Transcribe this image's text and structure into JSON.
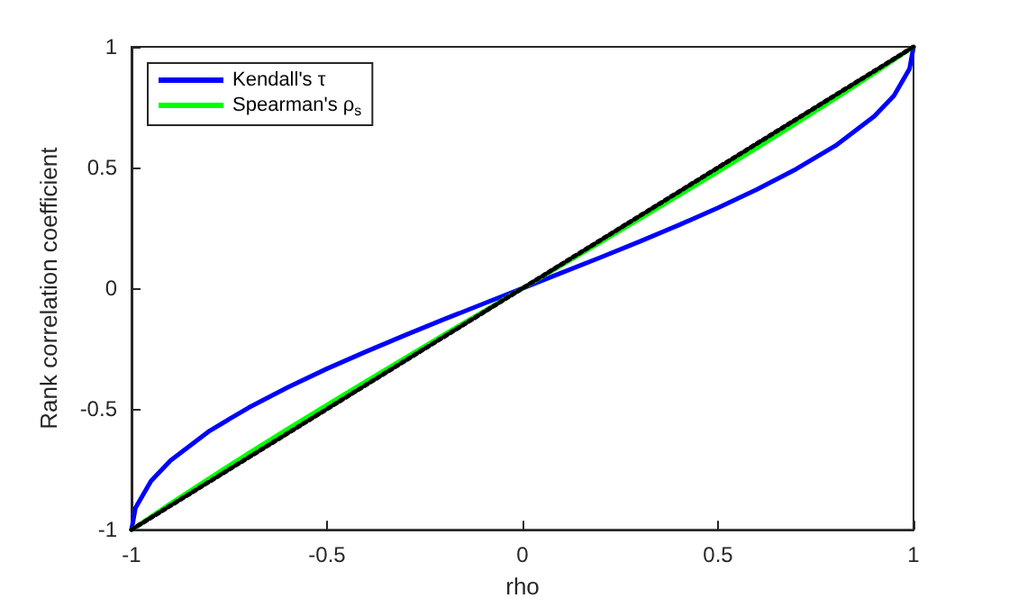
{
  "chart_data": {
    "type": "line",
    "xlabel": "rho",
    "ylabel": "Rank correlation coefficient",
    "xlim": [
      -1,
      1
    ],
    "ylim": [
      -1,
      1
    ],
    "xticks": [
      -1,
      -0.5,
      0,
      0.5,
      1
    ],
    "yticks": [
      -1,
      -0.5,
      0,
      0.5,
      1
    ],
    "grid": false,
    "legend": "top left",
    "marker": "none",
    "x": [
      -1,
      -0.99,
      -0.95,
      -0.9,
      -0.8,
      -0.7,
      -0.6,
      -0.5,
      -0.4,
      -0.3,
      -0.2,
      -0.1,
      0,
      0.1,
      0.2,
      0.3,
      0.4,
      0.5,
      0.6,
      0.7,
      0.8,
      0.9,
      0.95,
      0.99,
      1
    ],
    "series": [
      {
        "name": "Kendall's τ",
        "color": "#0000ff",
        "line_style": "solid",
        "values": [
          -1,
          -0.91,
          -0.798,
          -0.713,
          -0.59,
          -0.494,
          -0.41,
          -0.333,
          -0.262,
          -0.194,
          -0.128,
          -0.064,
          0,
          0.064,
          0.128,
          0.194,
          0.262,
          0.333,
          0.41,
          0.494,
          0.59,
          0.713,
          0.798,
          0.91,
          1
        ]
      },
      {
        "name": "Spearman's ρ$_{s}$",
        "color": "#00ff00",
        "line_style": "solid",
        "values": [
          -1,
          -0.99,
          -0.946,
          -0.891,
          -0.786,
          -0.683,
          -0.582,
          -0.483,
          -0.385,
          -0.288,
          -0.191,
          -0.096,
          0,
          0.096,
          0.191,
          0.288,
          0.385,
          0.483,
          0.582,
          0.683,
          0.786,
          0.891,
          0.946,
          0.99,
          1
        ]
      },
      {
        "color": "#000000",
        "line_style": "dotted",
        "x": [
          -1,
          1
        ],
        "values": [
          -1,
          1
        ]
      }
    ]
  }
}
